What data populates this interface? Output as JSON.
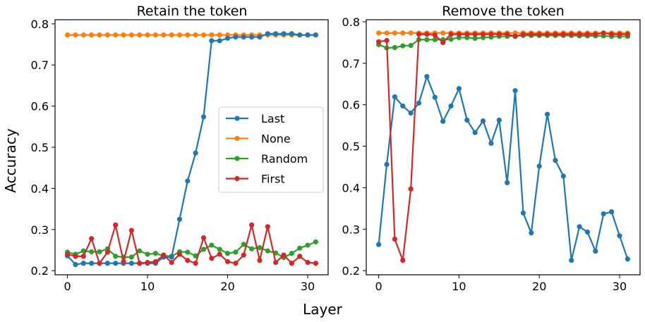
{
  "figure": {
    "xlabel": "Layer",
    "ylabel": "Accuracy"
  },
  "legend": {
    "placement": "center-right of left panel",
    "entries": [
      "Last",
      "None",
      "Random",
      "First"
    ]
  },
  "colors": {
    "Last": "#1f77b4",
    "None": "#ff7f0e",
    "Random": "#2ca02c",
    "First": "#d62728"
  },
  "chart_data": [
    {
      "type": "line",
      "title": "Retain the token",
      "xlabel": "",
      "ylabel": "Accuracy",
      "xlim": [
        -1.55,
        32.55
      ],
      "ylim": [
        0.19,
        0.81
      ],
      "xticks": [
        0,
        10,
        20,
        30
      ],
      "yticks": [
        0.2,
        0.3,
        0.4,
        0.5,
        0.6,
        0.7,
        0.8
      ],
      "ytick_labels": [
        "0.2",
        "0.3",
        "0.4",
        "0.5",
        "0.6",
        "0.7",
        "0.8"
      ],
      "x": [
        0,
        1,
        2,
        3,
        4,
        5,
        6,
        7,
        8,
        9,
        10,
        11,
        12,
        13,
        14,
        15,
        16,
        17,
        18,
        19,
        20,
        21,
        22,
        23,
        24,
        25,
        26,
        27,
        28,
        29,
        30,
        31
      ],
      "series": [
        {
          "name": "Last",
          "values": [
            0.236,
            0.215,
            0.218,
            0.218,
            0.218,
            0.218,
            0.218,
            0.218,
            0.218,
            0.218,
            0.218,
            0.218,
            0.233,
            0.233,
            0.325,
            0.418,
            0.486,
            0.574,
            0.759,
            0.759,
            0.765,
            0.768,
            0.768,
            0.768,
            0.768,
            0.776,
            0.776,
            0.776,
            0.776,
            0.773,
            0.773,
            0.773
          ]
        },
        {
          "name": "None",
          "values": [
            0.773,
            0.773,
            0.773,
            0.773,
            0.773,
            0.773,
            0.773,
            0.773,
            0.773,
            0.773,
            0.773,
            0.773,
            0.773,
            0.773,
            0.773,
            0.773,
            0.773,
            0.773,
            0.773,
            0.773,
            0.773,
            0.773,
            0.773,
            0.773,
            0.773,
            0.773,
            0.773,
            0.773,
            0.773,
            0.773,
            0.773,
            0.773
          ]
        },
        {
          "name": "Random",
          "values": [
            0.245,
            0.24,
            0.248,
            0.246,
            0.246,
            0.253,
            0.235,
            0.233,
            0.233,
            0.248,
            0.24,
            0.242,
            0.236,
            0.235,
            0.246,
            0.245,
            0.236,
            0.252,
            0.262,
            0.252,
            0.242,
            0.245,
            0.264,
            0.253,
            0.256,
            0.248,
            0.243,
            0.232,
            0.242,
            0.255,
            0.262,
            0.27
          ]
        },
        {
          "name": "First",
          "values": [
            0.24,
            0.235,
            0.235,
            0.278,
            0.218,
            0.245,
            0.311,
            0.222,
            0.298,
            0.218,
            0.22,
            0.222,
            0.238,
            0.22,
            0.24,
            0.225,
            0.218,
            0.28,
            0.23,
            0.24,
            0.222,
            0.218,
            0.238,
            0.311,
            0.225,
            0.307,
            0.22,
            0.238,
            0.218,
            0.235,
            0.22,
            0.218
          ]
        }
      ]
    },
    {
      "type": "line",
      "title": "Remove the token",
      "xlabel": "",
      "ylabel": "",
      "xlim": [
        -1.55,
        32.55
      ],
      "ylim": [
        0.19,
        0.805
      ],
      "xticks": [
        0,
        10,
        20,
        30
      ],
      "yticks": [
        0.2,
        0.3,
        0.4,
        0.5,
        0.6,
        0.7,
        0.8
      ],
      "ytick_labels": [
        "0.2",
        "0.3",
        "0.4",
        "0.5",
        "0.6",
        "0.7",
        "0.8"
      ],
      "x": [
        0,
        1,
        2,
        3,
        4,
        5,
        6,
        7,
        8,
        9,
        10,
        11,
        12,
        13,
        14,
        15,
        16,
        17,
        18,
        19,
        20,
        21,
        22,
        23,
        24,
        25,
        26,
        27,
        28,
        29,
        30,
        31
      ],
      "series": [
        {
          "name": "Last",
          "values": [
            0.263,
            0.456,
            0.619,
            0.597,
            0.58,
            0.604,
            0.668,
            0.618,
            0.56,
            0.597,
            0.639,
            0.563,
            0.533,
            0.561,
            0.507,
            0.563,
            0.412,
            0.634,
            0.339,
            0.291,
            0.452,
            0.577,
            0.466,
            0.428,
            0.225,
            0.306,
            0.293,
            0.247,
            0.337,
            0.342,
            0.284,
            0.228
          ]
        },
        {
          "name": "None",
          "values": [
            0.773,
            0.773,
            0.773,
            0.773,
            0.773,
            0.773,
            0.773,
            0.773,
            0.773,
            0.773,
            0.773,
            0.773,
            0.773,
            0.773,
            0.773,
            0.773,
            0.773,
            0.773,
            0.773,
            0.773,
            0.773,
            0.773,
            0.773,
            0.773,
            0.773,
            0.773,
            0.773,
            0.773,
            0.773,
            0.773,
            0.773,
            0.773
          ]
        },
        {
          "name": "Random",
          "values": [
            0.745,
            0.737,
            0.738,
            0.742,
            0.743,
            0.757,
            0.757,
            0.757,
            0.757,
            0.758,
            0.762,
            0.762,
            0.76,
            0.762,
            0.763,
            0.765,
            0.765,
            0.766,
            0.767,
            0.767,
            0.767,
            0.767,
            0.767,
            0.767,
            0.767,
            0.766,
            0.766,
            0.766,
            0.766,
            0.765,
            0.765,
            0.765
          ]
        },
        {
          "name": "First",
          "values": [
            0.752,
            0.755,
            0.276,
            0.225,
            0.397,
            0.77,
            0.77,
            0.768,
            0.75,
            0.77,
            0.77,
            0.77,
            0.77,
            0.77,
            0.77,
            0.77,
            0.77,
            0.765,
            0.77,
            0.77,
            0.77,
            0.77,
            0.77,
            0.77,
            0.77,
            0.77,
            0.77,
            0.77,
            0.773,
            0.77,
            0.77,
            0.77
          ]
        }
      ]
    }
  ]
}
